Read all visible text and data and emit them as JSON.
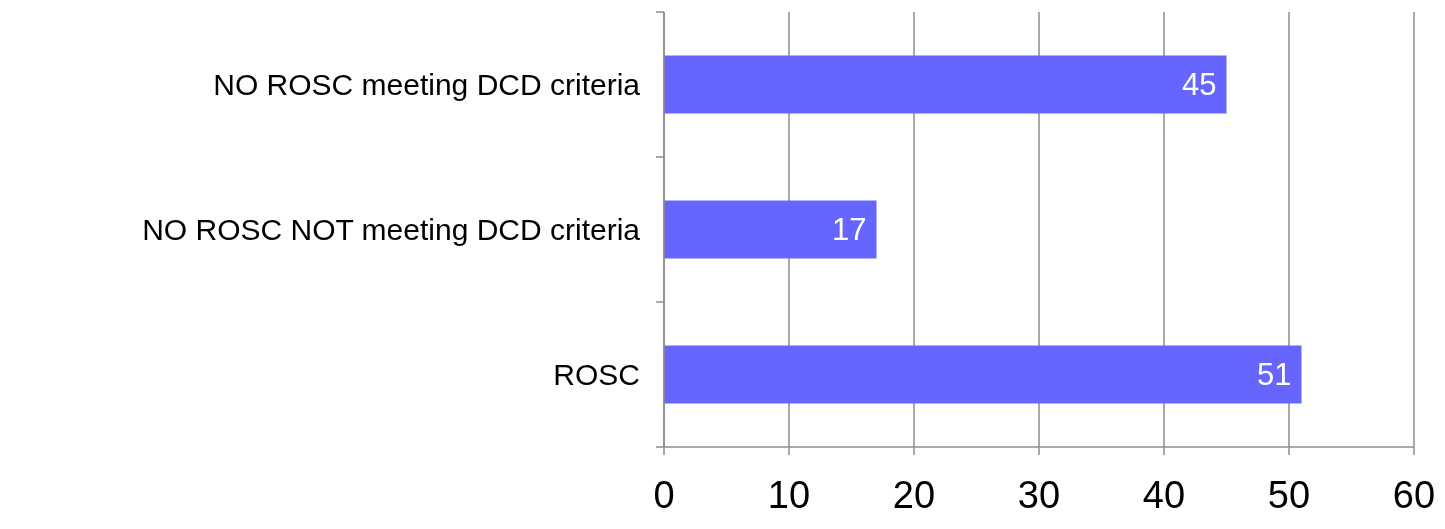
{
  "chart_data": {
    "type": "bar",
    "orientation": "horizontal",
    "categories": [
      "NO ROSC meeting DCD criteria",
      "NO ROSC NOT meeting DCD criteria",
      "ROSC"
    ],
    "values": [
      45,
      17,
      51
    ],
    "color": "#6666ff",
    "xlim": [
      0,
      60
    ],
    "xticks": [
      0,
      10,
      20,
      30,
      40,
      50,
      60
    ],
    "grid": "x",
    "data_labels": true
  }
}
